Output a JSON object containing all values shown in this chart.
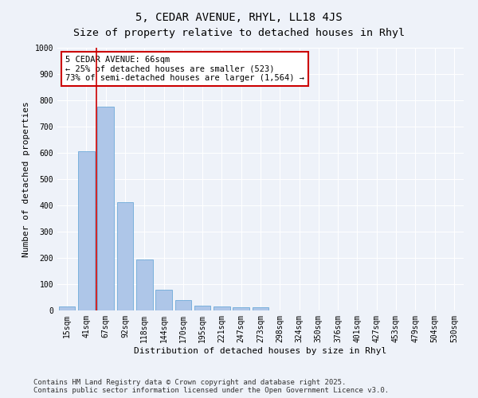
{
  "title": "5, CEDAR AVENUE, RHYL, LL18 4JS",
  "subtitle": "Size of property relative to detached houses in Rhyl",
  "xlabel": "Distribution of detached houses by size in Rhyl",
  "ylabel": "Number of detached properties",
  "categories": [
    "15sqm",
    "41sqm",
    "67sqm",
    "92sqm",
    "118sqm",
    "144sqm",
    "170sqm",
    "195sqm",
    "221sqm",
    "247sqm",
    "273sqm",
    "298sqm",
    "324sqm",
    "350sqm",
    "376sqm",
    "401sqm",
    "427sqm",
    "453sqm",
    "479sqm",
    "504sqm",
    "530sqm"
  ],
  "values": [
    15,
    605,
    775,
    413,
    193,
    78,
    38,
    18,
    15,
    11,
    13,
    0,
    0,
    0,
    0,
    0,
    0,
    0,
    0,
    0,
    0
  ],
  "bar_color": "#aec6e8",
  "bar_edge_color": "#5a9fd4",
  "property_line_x": 1.5,
  "property_line_color": "#cc0000",
  "annotation_line1": "5 CEDAR AVENUE: 66sqm",
  "annotation_line2": "← 25% of detached houses are smaller (523)",
  "annotation_line3": "73% of semi-detached houses are larger (1,564) →",
  "annotation_box_color": "#cc0000",
  "ylim": [
    0,
    1000
  ],
  "yticks": [
    0,
    100,
    200,
    300,
    400,
    500,
    600,
    700,
    800,
    900,
    1000
  ],
  "background_color": "#eef2f9",
  "plot_bg_color": "#eef2f9",
  "footer": "Contains HM Land Registry data © Crown copyright and database right 2025.\nContains public sector information licensed under the Open Government Licence v3.0.",
  "title_fontsize": 10,
  "xlabel_fontsize": 8,
  "ylabel_fontsize": 8,
  "tick_fontsize": 7,
  "footer_fontsize": 6.5,
  "annotation_fontsize": 7.5
}
